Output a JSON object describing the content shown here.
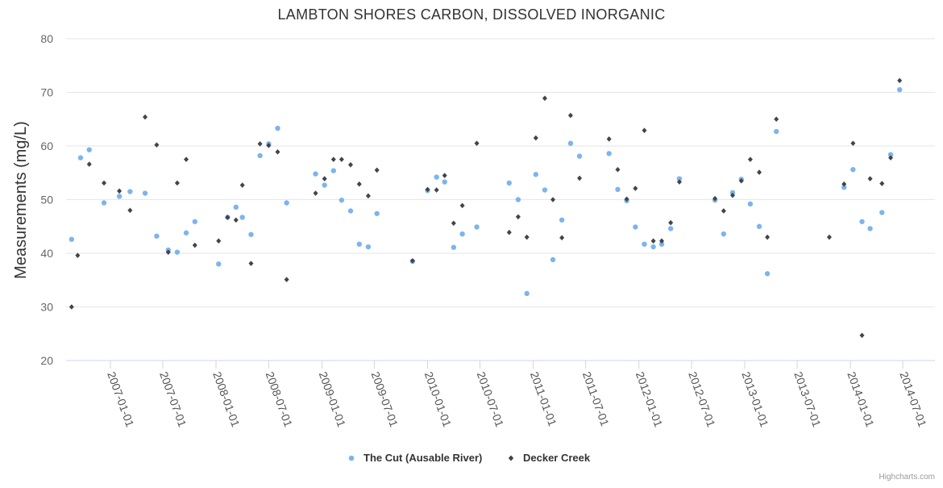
{
  "chart_data": {
    "type": "scatter",
    "title": "LAMBTON SHORES CARBON, DISSOLVED INORGANIC",
    "ylabel": "Measurements (mg/L)",
    "xlabel": "",
    "ylim": [
      20,
      80
    ],
    "yticks": [
      20,
      30,
      40,
      50,
      60,
      70,
      80
    ],
    "xlim": [
      "2006-08-01",
      "2014-10-20"
    ],
    "xticks": [
      "2007-01-01",
      "2007-07-01",
      "2008-01-01",
      "2008-07-01",
      "2009-01-01",
      "2009-07-01",
      "2010-01-01",
      "2010-07-01",
      "2011-01-01",
      "2011-07-01",
      "2012-01-01",
      "2012-07-01",
      "2013-01-01",
      "2013-07-01",
      "2014-01-01",
      "2014-07-01"
    ],
    "grid": true,
    "legend_position": "bottom-center",
    "series": [
      {
        "name": "The Cut (Ausable River)",
        "color": "#7cb5ec",
        "marker": "circle",
        "points": [
          [
            "2006-08-20",
            42.6
          ],
          [
            "2006-09-20",
            57.8
          ],
          [
            "2006-10-20",
            59.3
          ],
          [
            "2006-12-10",
            49.4
          ],
          [
            "2007-02-01",
            50.6
          ],
          [
            "2007-03-10",
            51.5
          ],
          [
            "2007-05-01",
            51.2
          ],
          [
            "2007-06-10",
            43.2
          ],
          [
            "2007-07-20",
            40.6
          ],
          [
            "2007-08-20",
            40.2
          ],
          [
            "2007-09-20",
            43.8
          ],
          [
            "2007-10-20",
            45.9
          ],
          [
            "2008-01-10",
            38.0
          ],
          [
            "2008-02-10",
            46.7
          ],
          [
            "2008-03-10",
            48.6
          ],
          [
            "2008-04-01",
            46.7
          ],
          [
            "2008-05-01",
            43.5
          ],
          [
            "2008-06-01",
            58.2
          ],
          [
            "2008-07-01",
            60.4
          ],
          [
            "2008-08-01",
            63.3
          ],
          [
            "2008-09-01",
            49.4
          ],
          [
            "2008-12-10",
            54.8
          ],
          [
            "2009-01-10",
            52.7
          ],
          [
            "2009-02-10",
            55.4
          ],
          [
            "2009-03-10",
            49.9
          ],
          [
            "2009-04-10",
            47.9
          ],
          [
            "2009-05-10",
            41.7
          ],
          [
            "2009-06-10",
            41.2
          ],
          [
            "2009-07-10",
            47.4
          ],
          [
            "2009-11-10",
            38.5
          ],
          [
            "2010-01-01",
            51.7
          ],
          [
            "2010-02-01",
            54.2
          ],
          [
            "2010-03-01",
            53.3
          ],
          [
            "2010-04-01",
            41.1
          ],
          [
            "2010-05-01",
            43.6
          ],
          [
            "2010-06-20",
            44.9
          ],
          [
            "2010-10-10",
            53.1
          ],
          [
            "2010-11-10",
            50.0
          ],
          [
            "2010-12-10",
            32.5
          ],
          [
            "2011-01-10",
            54.7
          ],
          [
            "2011-02-10",
            51.8
          ],
          [
            "2011-03-10",
            38.8
          ],
          [
            "2011-04-10",
            46.2
          ],
          [
            "2011-05-10",
            60.5
          ],
          [
            "2011-06-10",
            58.1
          ],
          [
            "2011-09-20",
            58.6
          ],
          [
            "2011-10-20",
            51.9
          ],
          [
            "2011-11-20",
            49.8
          ],
          [
            "2011-12-20",
            44.9
          ],
          [
            "2012-01-20",
            41.7
          ],
          [
            "2012-02-20",
            41.2
          ],
          [
            "2012-03-20",
            41.7
          ],
          [
            "2012-04-20",
            44.6
          ],
          [
            "2012-05-20",
            53.9
          ],
          [
            "2012-09-20",
            49.9
          ],
          [
            "2012-10-20",
            43.6
          ],
          [
            "2012-11-20",
            51.3
          ],
          [
            "2012-12-20",
            53.8
          ],
          [
            "2013-01-20",
            49.2
          ],
          [
            "2013-02-20",
            45.0
          ],
          [
            "2013-03-20",
            36.2
          ],
          [
            "2013-04-20",
            62.7
          ],
          [
            "2013-12-10",
            52.3
          ],
          [
            "2014-01-10",
            55.6
          ],
          [
            "2014-02-10",
            45.9
          ],
          [
            "2014-03-10",
            44.6
          ],
          [
            "2014-04-20",
            47.6
          ],
          [
            "2014-05-20",
            58.4
          ],
          [
            "2014-06-20",
            70.5
          ]
        ]
      },
      {
        "name": "Decker Creek",
        "color": "#434348",
        "marker": "diamond",
        "points": [
          [
            "2006-08-20",
            30.0
          ],
          [
            "2006-09-10",
            39.6
          ],
          [
            "2006-10-20",
            56.6
          ],
          [
            "2006-12-10",
            53.1
          ],
          [
            "2007-02-01",
            51.6
          ],
          [
            "2007-03-10",
            48.0
          ],
          [
            "2007-05-01",
            65.4
          ],
          [
            "2007-06-10",
            60.2
          ],
          [
            "2007-07-20",
            40.2
          ],
          [
            "2007-08-20",
            53.1
          ],
          [
            "2007-09-20",
            57.5
          ],
          [
            "2007-10-20",
            41.5
          ],
          [
            "2008-01-10",
            42.3
          ],
          [
            "2008-02-10",
            46.7
          ],
          [
            "2008-03-10",
            46.2
          ],
          [
            "2008-04-01",
            52.7
          ],
          [
            "2008-05-01",
            38.1
          ],
          [
            "2008-06-01",
            60.4
          ],
          [
            "2008-07-01",
            60.1
          ],
          [
            "2008-08-01",
            58.9
          ],
          [
            "2008-09-01",
            35.1
          ],
          [
            "2008-12-10",
            51.2
          ],
          [
            "2009-01-10",
            53.9
          ],
          [
            "2009-02-10",
            57.5
          ],
          [
            "2009-03-10",
            57.5
          ],
          [
            "2009-04-10",
            56.5
          ],
          [
            "2009-05-10",
            52.9
          ],
          [
            "2009-06-10",
            50.7
          ],
          [
            "2009-07-10",
            55.5
          ],
          [
            "2009-11-10",
            38.6
          ],
          [
            "2010-01-01",
            51.9
          ],
          [
            "2010-02-01",
            51.8
          ],
          [
            "2010-03-01",
            54.5
          ],
          [
            "2010-04-01",
            45.6
          ],
          [
            "2010-05-01",
            48.9
          ],
          [
            "2010-06-20",
            60.5
          ],
          [
            "2010-10-10",
            43.9
          ],
          [
            "2010-11-10",
            46.8
          ],
          [
            "2010-12-10",
            43.0
          ],
          [
            "2011-01-10",
            61.5
          ],
          [
            "2011-02-10",
            68.9
          ],
          [
            "2011-03-10",
            50.0
          ],
          [
            "2011-04-10",
            42.9
          ],
          [
            "2011-05-10",
            65.7
          ],
          [
            "2011-06-10",
            54.0
          ],
          [
            "2011-09-20",
            61.3
          ],
          [
            "2011-10-20",
            55.6
          ],
          [
            "2011-11-20",
            50.1
          ],
          [
            "2011-12-20",
            52.1
          ],
          [
            "2012-01-20",
            62.9
          ],
          [
            "2012-02-20",
            42.3
          ],
          [
            "2012-03-20",
            42.3
          ],
          [
            "2012-04-20",
            45.7
          ],
          [
            "2012-05-20",
            53.3
          ],
          [
            "2012-09-20",
            50.2
          ],
          [
            "2012-10-20",
            47.9
          ],
          [
            "2012-11-20",
            50.8
          ],
          [
            "2012-12-20",
            53.5
          ],
          [
            "2013-01-20",
            57.5
          ],
          [
            "2013-02-20",
            55.1
          ],
          [
            "2013-03-20",
            43.0
          ],
          [
            "2013-04-20",
            65.0
          ],
          [
            "2013-10-20",
            43.0
          ],
          [
            "2013-12-10",
            52.9
          ],
          [
            "2014-01-10",
            60.5
          ],
          [
            "2014-02-10",
            24.7
          ],
          [
            "2014-03-10",
            53.9
          ],
          [
            "2014-04-20",
            53.0
          ],
          [
            "2014-05-20",
            57.8
          ],
          [
            "2014-06-20",
            72.2
          ]
        ]
      }
    ]
  },
  "credits": "Highcharts.com"
}
